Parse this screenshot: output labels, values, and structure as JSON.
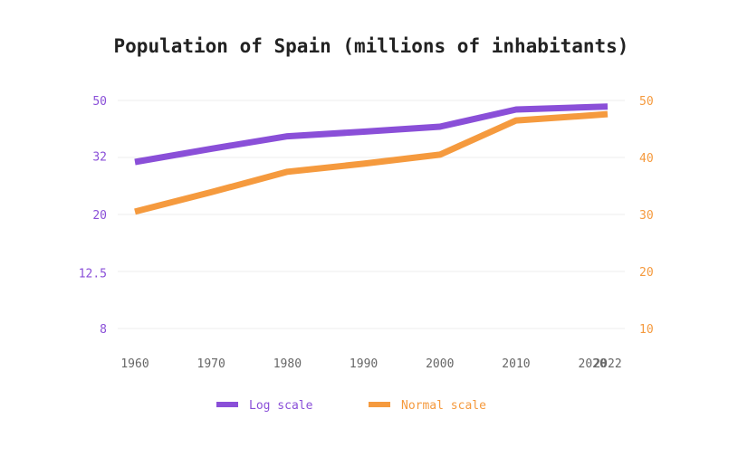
{
  "chart_data": {
    "type": "line",
    "title": "Population of Spain (millions of inhabitants)",
    "categories": [
      "1960",
      "1970",
      "1980",
      "1990",
      "2000",
      "2010",
      "2020",
      "2022"
    ],
    "x": [
      1960,
      1970,
      1980,
      1990,
      2000,
      2010,
      2020,
      2022
    ],
    "left_axis": {
      "scale": "log",
      "ticks": [
        8,
        12.5,
        20,
        32,
        50
      ],
      "tick_labels": [
        "8",
        "12.5",
        "20",
        "32",
        "50"
      ],
      "color": "#8a4fd8"
    },
    "right_axis": {
      "scale": "linear",
      "ylim": [
        10,
        50
      ],
      "ticks": [
        10,
        20,
        30,
        40,
        50
      ],
      "tick_labels": [
        "10",
        "20",
        "30",
        "40",
        "50"
      ],
      "color": "#f59a3e"
    },
    "series": [
      {
        "name": "Log scale",
        "axis": "left",
        "color": "#8a4fd8",
        "values": [
          30.5,
          33.9,
          37.5,
          38.9,
          40.5,
          46.5,
          47.4,
          47.6
        ]
      },
      {
        "name": "Normal scale",
        "axis": "right",
        "color": "#f59a3e",
        "values": [
          30.5,
          33.9,
          37.5,
          38.9,
          40.5,
          46.5,
          47.4,
          47.6
        ]
      }
    ],
    "legend": {
      "position": "bottom",
      "items": [
        {
          "label": "Log scale",
          "color": "#8a4fd8"
        },
        {
          "label": "Normal scale",
          "color": "#f59a3e"
        }
      ]
    },
    "grid": true,
    "x_label_color": "#666666"
  }
}
